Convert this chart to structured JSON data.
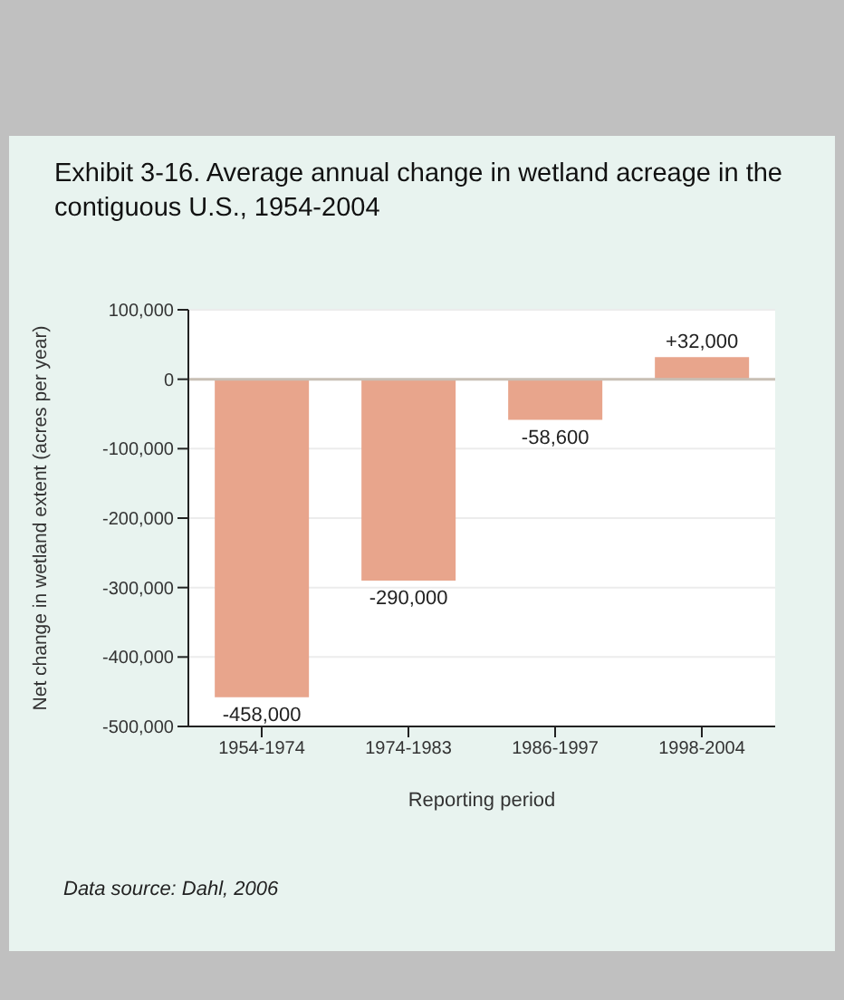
{
  "chart_data": {
    "type": "bar",
    "title": "Exhibit 3-16. Average annual change in wetland acreage in the contiguous U.S., 1954-2004",
    "xlabel": "Reporting period",
    "ylabel": "Net change in wetland extent (acres per year)",
    "categories": [
      "1954-1974",
      "1974-1983",
      "1986-1997",
      "1998-2004"
    ],
    "values": [
      -458000,
      -290000,
      -58600,
      32000
    ],
    "value_labels": [
      "-458,000",
      "-290,000",
      "-58,600",
      "+32,000"
    ],
    "color": "#e8a58c",
    "ylim": [
      -500000,
      100000
    ],
    "yticks": [
      {
        "value": -500000,
        "label": "-500,000"
      },
      {
        "value": -400000,
        "label": "-400,000"
      },
      {
        "value": -300000,
        "label": "-300,000"
      },
      {
        "value": -200000,
        "label": "-200,000"
      },
      {
        "value": -100000,
        "label": "-100,000"
      },
      0,
      {
        "value": 100000,
        "label": "100,000"
      }
    ],
    "grid": "y",
    "ref_lines": [
      {
        "axis": "y",
        "value": 0,
        "color": "#c8bfb5"
      }
    ],
    "annotations": [
      "Data source: Dahl, 2006"
    ]
  }
}
